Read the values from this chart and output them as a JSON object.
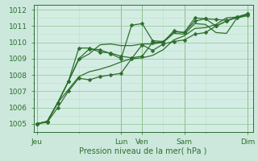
{
  "xlabel": "Pression niveau de la mer( hPa )",
  "bg_color": "#cce8dd",
  "plot_bg_color": "#d4ede4",
  "grid_color_major": "#99cc99",
  "grid_color_minor": "#bbddbb",
  "line_color": "#2d6e2d",
  "dark_line_color": "#1a4a1a",
  "ylim": [
    1004.5,
    1012.3
  ],
  "yticks": [
    1005,
    1006,
    1007,
    1008,
    1009,
    1010,
    1011,
    1012
  ],
  "xtick_labels": [
    "Jeu",
    "Lun",
    "Ven",
    "Sam",
    "Dim"
  ],
  "xtick_positions": [
    0,
    8,
    10,
    14,
    20
  ],
  "xlim": [
    -0.3,
    20.5
  ],
  "num_points": 21,
  "lines": [
    {
      "y": [
        1005.0,
        1005.1,
        1006.0,
        1007.0,
        1007.8,
        1007.7,
        1007.9,
        1008.0,
        1008.1,
        1009.0,
        1009.85,
        1009.5,
        1009.9,
        1010.05,
        1010.15,
        1010.5,
        1010.6,
        1011.0,
        1011.3,
        1011.55,
        1011.75
      ],
      "marker": true
    },
    {
      "y": [
        1005.0,
        1005.15,
        1006.3,
        1007.6,
        1009.0,
        1009.6,
        1009.55,
        1009.3,
        1009.0,
        1011.05,
        1011.15,
        1010.1,
        1010.05,
        1010.65,
        1010.6,
        1011.3,
        1011.45,
        1011.0,
        1011.3,
        1011.55,
        1011.75
      ],
      "marker": true
    },
    {
      "y": [
        1005.0,
        1005.15,
        1006.3,
        1007.6,
        1009.65,
        1009.65,
        1009.4,
        1009.35,
        1009.15,
        1009.05,
        1009.15,
        1010.0,
        1010.0,
        1010.7,
        1010.6,
        1011.5,
        1011.45,
        1011.4,
        1011.35,
        1011.5,
        1011.65
      ],
      "marker": true
    },
    {
      "y": [
        1005.0,
        1005.15,
        1006.3,
        1007.6,
        1008.95,
        1009.3,
        1009.85,
        1009.9,
        1009.8,
        1009.8,
        1009.9,
        1009.9,
        1010.0,
        1010.55,
        1010.5,
        1011.15,
        1011.1,
        1010.6,
        1010.55,
        1011.5,
        1011.65
      ],
      "marker": false
    },
    {
      "y": [
        1005.0,
        1005.15,
        1006.3,
        1007.1,
        1007.9,
        1008.2,
        1008.35,
        1008.55,
        1008.8,
        1009.0,
        1009.05,
        1009.2,
        1009.55,
        1010.15,
        1010.4,
        1010.85,
        1010.9,
        1011.1,
        1011.5,
        1011.55,
        1011.65
      ],
      "marker": false
    }
  ],
  "vline_positions": [
    0,
    8,
    10,
    14,
    20
  ],
  "marker_symbol": "D",
  "marker_size": 2.5,
  "line_width": 0.9,
  "font_size_xlabel": 7,
  "font_size_tick": 6.5
}
